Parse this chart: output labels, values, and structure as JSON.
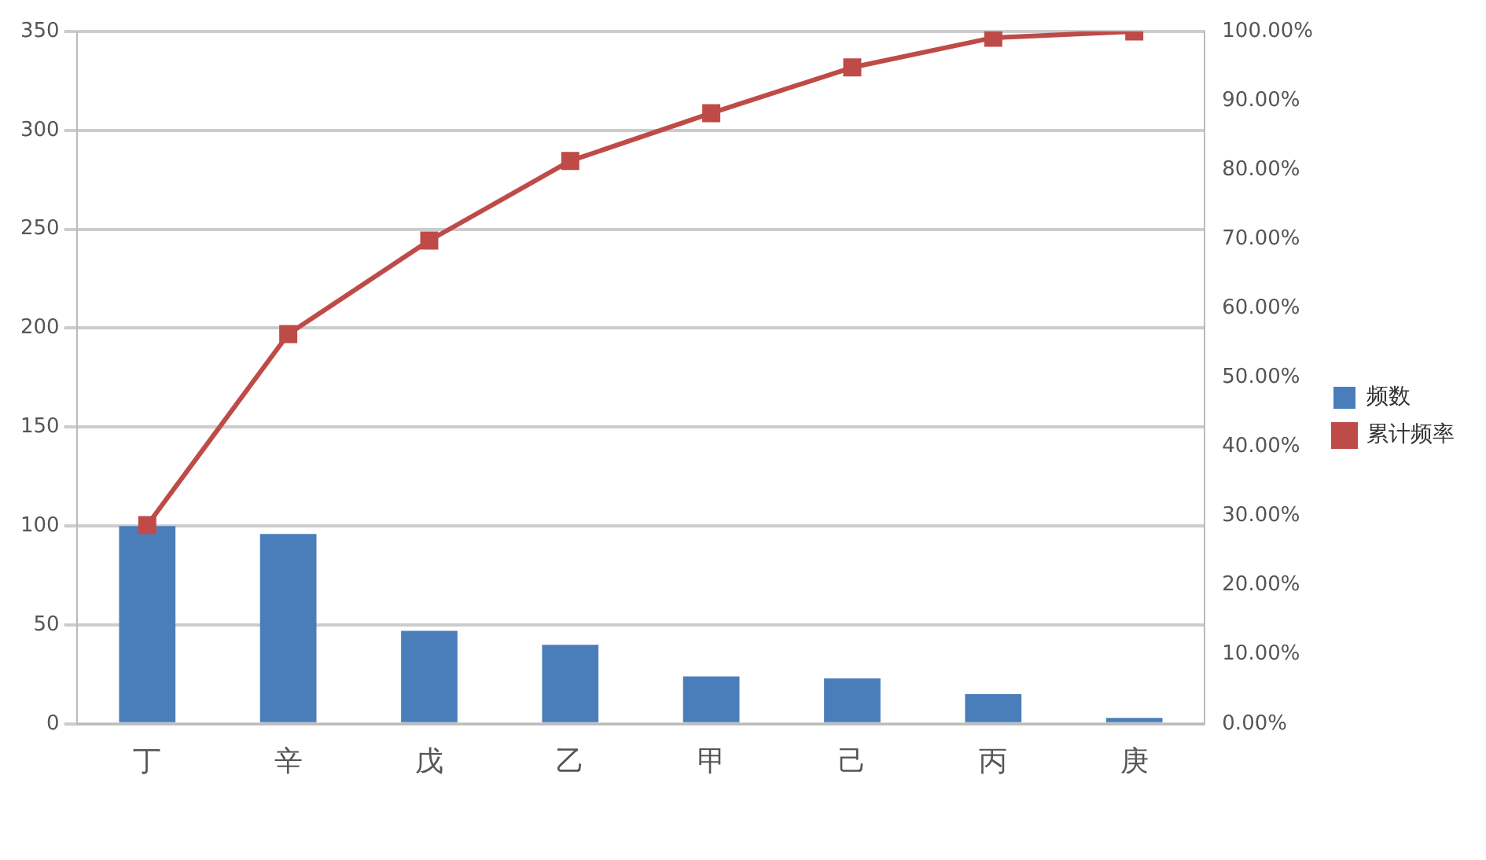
{
  "chart_data": {
    "type": "bar",
    "categories": [
      "丁",
      "辛",
      "戊",
      "乙",
      "甲",
      "己",
      "丙",
      "庚"
    ],
    "series": [
      {
        "name": "频数",
        "color": "#4a7ebb",
        "values": [
          100,
          96,
          47,
          40,
          24,
          23,
          15,
          3
        ]
      },
      {
        "name": "累计频率",
        "type": "line",
        "axis": "y2",
        "color": "#be4b48",
        "marker": "square",
        "values": [
          28.7,
          56.3,
          69.8,
          81.3,
          88.2,
          94.8,
          99.1,
          100
        ]
      }
    ],
    "ylim": [
      0,
      350
    ],
    "yticks": [
      0,
      50,
      100,
      150,
      200,
      250,
      300,
      350
    ],
    "y2lim": [
      0,
      100
    ],
    "y2ticks": [
      {
        "value": 0,
        "label": "0.00%"
      },
      {
        "value": 10,
        "label": "10.00%"
      },
      {
        "value": 20,
        "label": "20.00%"
      },
      {
        "value": 30,
        "label": "30.00%"
      },
      {
        "value": 40,
        "label": "40.00%"
      },
      {
        "value": 50,
        "label": "50.00%"
      },
      {
        "value": 60,
        "label": "60.00%"
      },
      {
        "value": 70,
        "label": "70.00%"
      },
      {
        "value": 80,
        "label": "80.00%"
      },
      {
        "value": 90,
        "label": "90.00%"
      },
      {
        "value": 100,
        "label": "100.00%"
      }
    ],
    "grid": "y",
    "legend": "right"
  }
}
